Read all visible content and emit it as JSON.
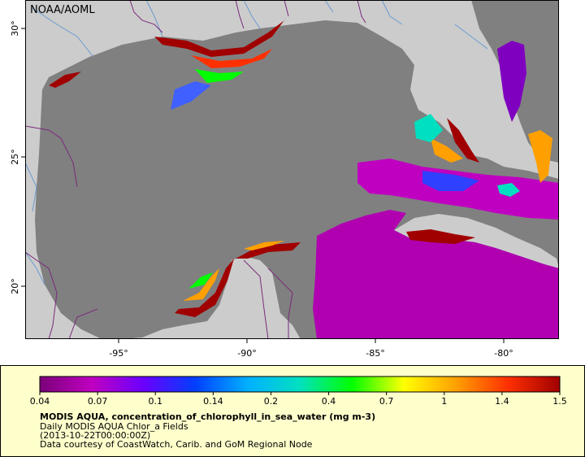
{
  "watermark": "NOAA/AOML",
  "map": {
    "lat_ticks": [
      "30°",
      "25°",
      "20°"
    ],
    "lon_ticks": [
      "-95°",
      "-90°",
      "-85°",
      "-80°"
    ]
  },
  "colorbar": {
    "tick_labels": [
      "0.04",
      "0.07",
      "0.1",
      "0.14",
      "0.2",
      "0.4",
      "0.7",
      "1",
      "1.4",
      "1.5"
    ],
    "colors": [
      "#7a007a",
      "#c000c0",
      "#6a00ff",
      "#0040ff",
      "#00b0ff",
      "#00e0c0",
      "#00ff00",
      "#ffff00",
      "#ffa000",
      "#ff3000",
      "#a00000"
    ]
  },
  "caption": {
    "title": "MODIS AQUA, concentration_of_chlorophyll_in_sea_water (mg m-3)",
    "subtitle": "Daily MODIS AQUA Chlor_a Fields",
    "time": "(2013-10-22T00:00:00Z)",
    "credit": "Data courtesy of CoastWatch, Carib. and GoM Regional Node"
  },
  "colors": {
    "land": "#cccccc",
    "water_no_data": "#808080",
    "border": "#7a2a7a",
    "river": "#6a9ad0",
    "legend_bg": "#ffffcc"
  }
}
